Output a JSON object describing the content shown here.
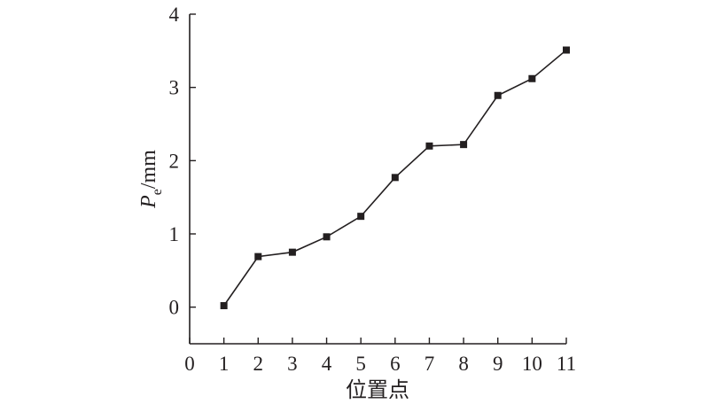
{
  "chart_data": {
    "type": "line",
    "xlabel": "位置点",
    "ylabel": {
      "main": "P",
      "subscript": "e",
      "unit": "/mm"
    },
    "xlim": [
      0,
      11
    ],
    "ylim": [
      -0.5,
      4
    ],
    "x_ticks": [
      "0",
      "1",
      "2",
      "3",
      "4",
      "5",
      "6",
      "7",
      "8",
      "9",
      "10",
      "11"
    ],
    "y_ticks": [
      "0",
      "1",
      "2",
      "3",
      "4"
    ],
    "x_tick_values": [
      0,
      1,
      2,
      3,
      4,
      5,
      6,
      7,
      8,
      9,
      10,
      11
    ],
    "y_tick_values": [
      0,
      1,
      2,
      3,
      4
    ],
    "grid": false,
    "marker": "square",
    "color": "#231f20",
    "x": [
      1,
      2,
      3,
      4,
      5,
      6,
      7,
      8,
      9,
      10,
      11
    ],
    "values": [
      0.02,
      0.69,
      0.75,
      0.96,
      1.24,
      1.77,
      2.2,
      2.22,
      2.89,
      3.12,
      3.51
    ]
  }
}
